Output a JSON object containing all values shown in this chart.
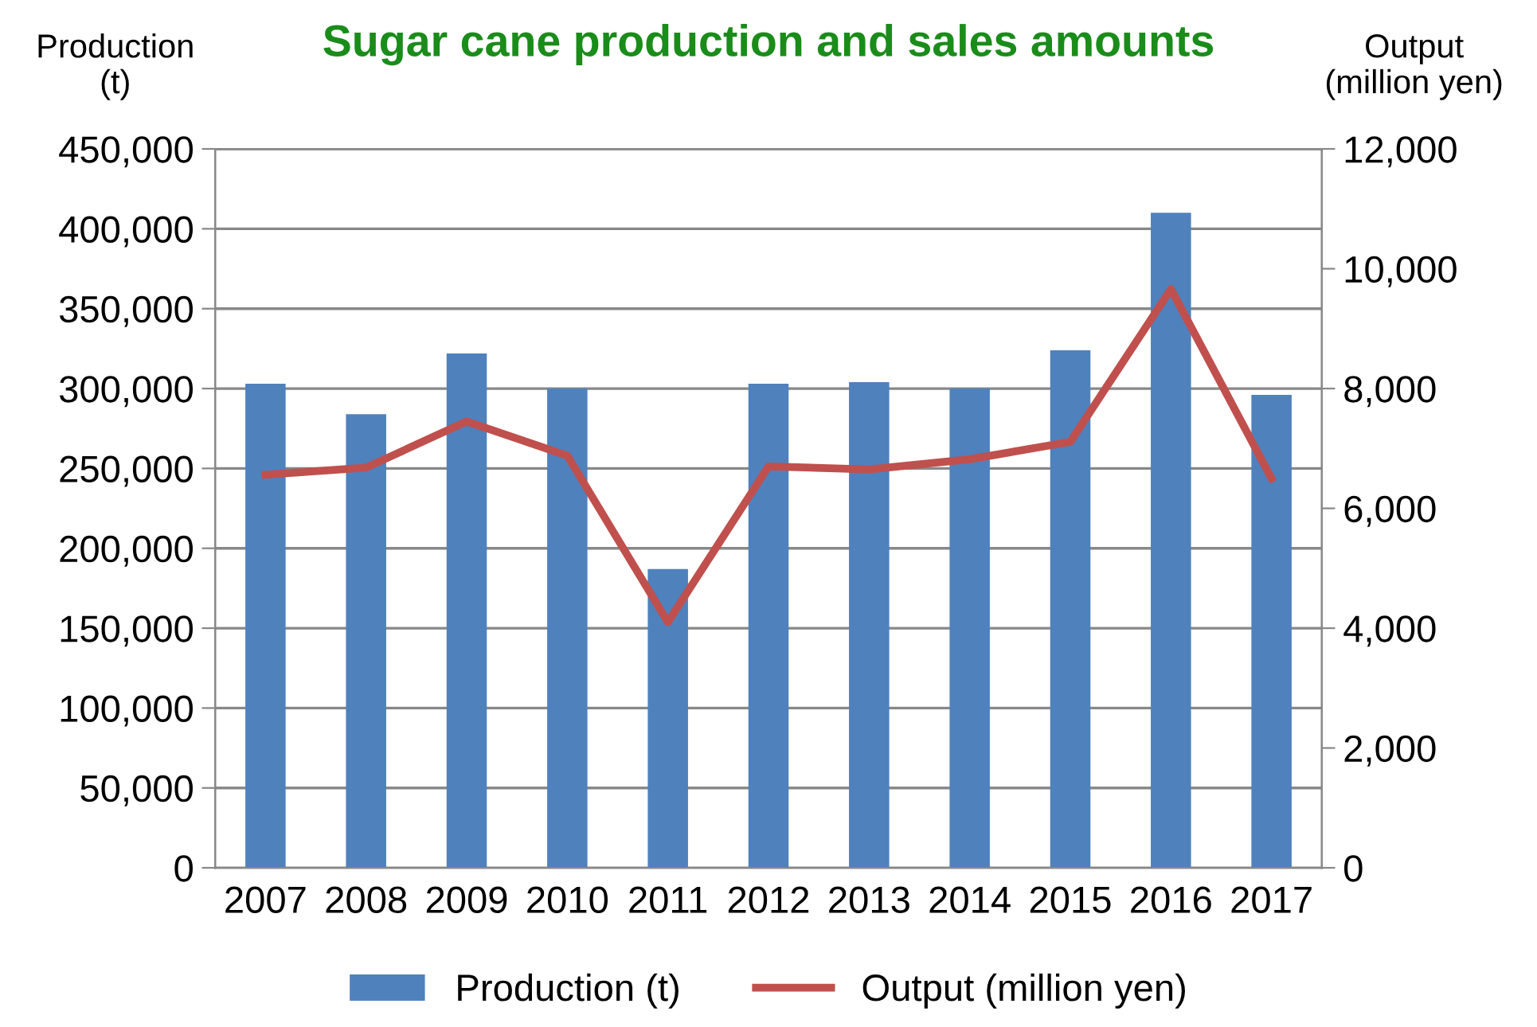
{
  "chart_data": {
    "type": "bar",
    "title": "Sugar cane production and sales amounts",
    "ylabel": "Production\n(t)",
    "y2label": "Output\n(million yen)",
    "categories": [
      "2007",
      "2008",
      "2009",
      "2010",
      "2011",
      "2012",
      "2013",
      "2014",
      "2015",
      "2016",
      "2017"
    ],
    "series": [
      {
        "name": "Production (t)",
        "color": "#4f81bd",
        "values": [
          303000,
          284000,
          322000,
          300000,
          187000,
          303000,
          304000,
          300000,
          324000,
          410000,
          296000
        ]
      },
      {
        "name": "Output (million yen)",
        "type": "line",
        "axis": "y2",
        "color": "#c0504d",
        "values": [
          6560,
          6680,
          7450,
          6880,
          4100,
          6700,
          6650,
          6820,
          7110,
          9660,
          6500
        ]
      }
    ],
    "ylim": [
      0,
      450000
    ],
    "yticks": [
      {
        "value": 0,
        "label": "0"
      },
      {
        "value": 50000,
        "label": "50,000"
      },
      {
        "value": 100000,
        "label": "100,000"
      },
      {
        "value": 150000,
        "label": "150,000"
      },
      {
        "value": 200000,
        "label": "200,000"
      },
      {
        "value": 250000,
        "label": "250,000"
      },
      {
        "value": 300000,
        "label": "300,000"
      },
      {
        "value": 350000,
        "label": "350,000"
      },
      {
        "value": 400000,
        "label": "400,000"
      },
      {
        "value": 450000,
        "label": "450,000"
      }
    ],
    "y2lim": [
      0,
      12000
    ],
    "y2ticks": [
      {
        "value": 0,
        "label": "0"
      },
      {
        "value": 2000,
        "label": "2,000"
      },
      {
        "value": 4000,
        "label": "4,000"
      },
      {
        "value": 6000,
        "label": "6,000"
      },
      {
        "value": 8000,
        "label": "8,000"
      },
      {
        "value": 10000,
        "label": "10,000"
      },
      {
        "value": 12000,
        "label": "12,000"
      }
    ],
    "grid": "y",
    "legend": "bottom"
  }
}
